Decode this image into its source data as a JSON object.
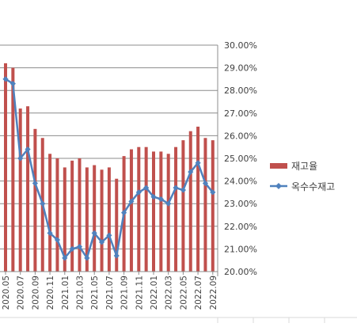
{
  "chart_data": {
    "type": "bar",
    "categories": [
      "2020.05",
      "2020.06",
      "2020.07",
      "2020.08",
      "2020.09",
      "2020.10",
      "2020.11",
      "2020.12",
      "2021.01",
      "2021.02",
      "2021.03",
      "2021.04",
      "2021.05",
      "2021.06",
      "2021.07",
      "2021.08",
      "2021.09",
      "2021.10",
      "2021.11",
      "2021.12",
      "2022.01",
      "2022.02",
      "2022.03",
      "2022.04",
      "2022.05",
      "2022.06",
      "2022.07",
      "2022.08",
      "2022.09"
    ],
    "x_tick_labels": [
      "2020.05",
      "2020.07",
      "2020.09",
      "2020.11",
      "2021.01",
      "2021.03",
      "2021.05",
      "2021.07",
      "2021.09",
      "2021.11",
      "2022.01",
      "2022.03",
      "2022.05",
      "2022.07",
      "2022.09"
    ],
    "y_tick_labels": [
      "30.00%",
      "29.00%",
      "28.00%",
      "27.00%",
      "26.00%",
      "25.00%",
      "24.00%",
      "23.00%",
      "22.00%",
      "21.00%",
      "20.00%"
    ],
    "ylim": [
      20,
      30
    ],
    "y_axis_position": "right",
    "series": [
      {
        "name": "재고율",
        "type": "bar",
        "color": "#c0504d",
        "values": [
          29.2,
          29.0,
          27.2,
          27.3,
          26.3,
          25.9,
          25.2,
          25.0,
          24.6,
          24.9,
          25.0,
          24.6,
          24.7,
          24.5,
          24.6,
          24.1,
          25.1,
          25.4,
          25.5,
          25.5,
          25.3,
          25.3,
          25.2,
          25.5,
          25.8,
          26.2,
          26.4,
          25.9,
          25.8
        ]
      },
      {
        "name": "옥수수재고",
        "type": "line",
        "color": "#4f81bd",
        "values": [
          28.5,
          28.3,
          25.0,
          25.4,
          23.9,
          23.0,
          21.7,
          21.4,
          20.6,
          21.0,
          21.1,
          20.6,
          21.7,
          21.3,
          21.6,
          20.7,
          22.6,
          23.1,
          23.5,
          23.7,
          23.3,
          23.2,
          23.0,
          23.7,
          23.6,
          24.4,
          24.8,
          23.9,
          23.5
        ]
      }
    ],
    "legend": [
      {
        "label": "재고율",
        "marker": "bar",
        "color": "#c0504d"
      },
      {
        "label": "옥수수재고",
        "marker": "line-diamond",
        "color": "#4f81bd"
      }
    ],
    "legend_position": "right",
    "grid": true
  }
}
